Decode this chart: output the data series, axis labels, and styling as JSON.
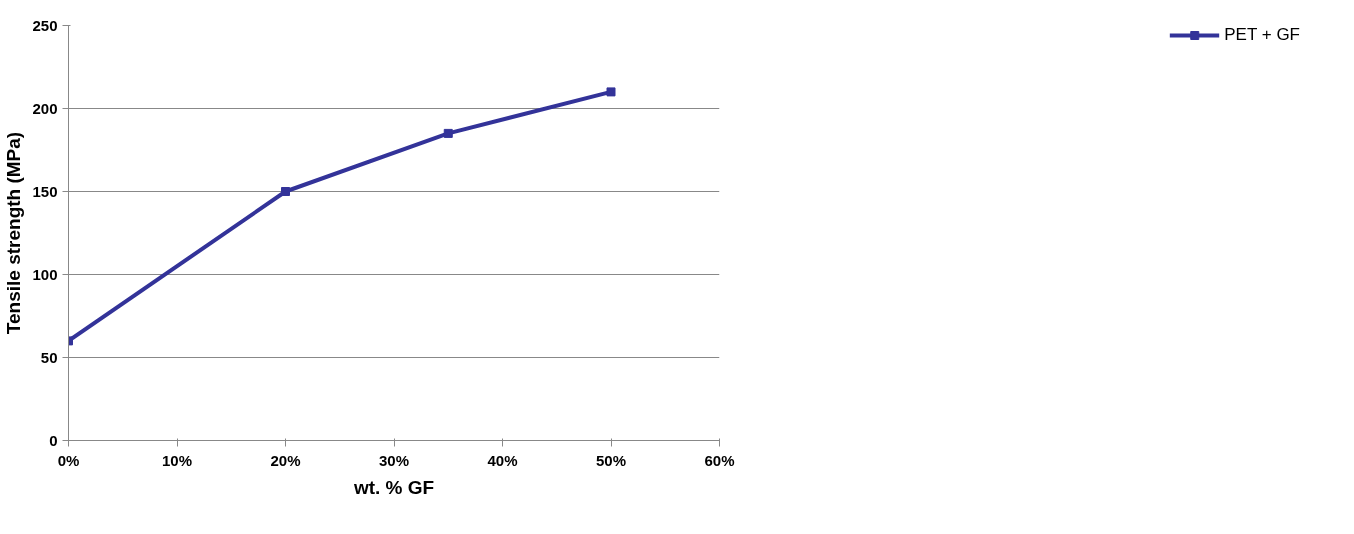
{
  "chart_data": {
    "type": "line",
    "xlabel": "wt. % GF",
    "ylabel": "Tensile strength (MPa)",
    "x": [
      0,
      20,
      35,
      50
    ],
    "series": [
      {
        "name": "PET + GF",
        "color": "#333399",
        "values": [
          60,
          150,
          185,
          210
        ]
      }
    ],
    "xlim": [
      0,
      60
    ],
    "xticks": [
      {
        "value": 0,
        "label": "0%"
      },
      {
        "value": 10,
        "label": "10%"
      },
      {
        "value": 20,
        "label": "20%"
      },
      {
        "value": 30,
        "label": "30%"
      },
      {
        "value": 40,
        "label": "40%"
      },
      {
        "value": 50,
        "label": "50%"
      },
      {
        "value": 60,
        "label": "60%"
      }
    ],
    "ylim": [
      0,
      250
    ],
    "yticks": [
      0,
      50,
      100,
      150,
      200,
      250
    ],
    "grid": "y",
    "legend": "right",
    "marker": "square",
    "line_style": "solid"
  }
}
